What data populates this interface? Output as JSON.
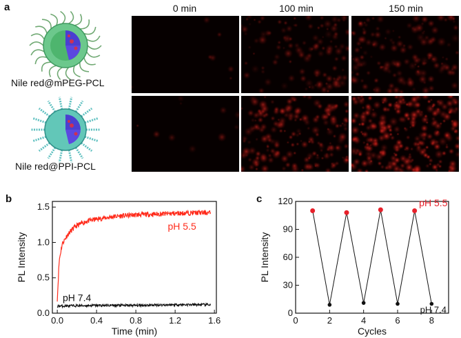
{
  "panel_a": {
    "label": "a",
    "columns": [
      "0 min",
      "100 min",
      "150 min"
    ],
    "rows": [
      {
        "label": "Nile red@mPEG-PCL",
        "intensity": [
          0.02,
          0.45,
          0.55
        ]
      },
      {
        "label": "Nile red@PPI-PCL",
        "intensity": [
          0.03,
          0.7,
          0.95
        ]
      }
    ],
    "colors": {
      "micelle_shell": "#58c080",
      "micelle_core": "#4b3fd0",
      "fluorescence": "#ff2a2a",
      "background": "#060000"
    }
  },
  "chart_data": [
    {
      "type": "line",
      "panel": "b",
      "xlabel": "Time (min)",
      "ylabel": "PL Intensity",
      "xlim": [
        -0.05,
        1.62
      ],
      "ylim": [
        0.0,
        1.58
      ],
      "xticks": [
        "0.0",
        "0.4",
        "0.8",
        "1.2",
        "1.6"
      ],
      "yticks": [
        "0.0",
        "0.5",
        "1.0",
        "1.5"
      ],
      "series": [
        {
          "name": "pH 5.5",
          "color": "#ff2a1a",
          "x": [
            0.0,
            0.02,
            0.05,
            0.1,
            0.15,
            0.2,
            0.3,
            0.4,
            0.6,
            0.8,
            1.0,
            1.2,
            1.4,
            1.56
          ],
          "y": [
            0.2,
            0.75,
            0.98,
            1.1,
            1.18,
            1.24,
            1.3,
            1.33,
            1.37,
            1.39,
            1.4,
            1.41,
            1.42,
            1.42
          ]
        },
        {
          "name": "pH 7.4",
          "color": "#111111",
          "x": [
            0.0,
            0.4,
            0.8,
            1.2,
            1.56
          ],
          "y": [
            0.1,
            0.11,
            0.11,
            0.12,
            0.12
          ]
        }
      ]
    },
    {
      "type": "line",
      "panel": "c",
      "xlabel": "Cycles",
      "ylabel": "PL Intensity",
      "xlim": [
        0,
        9
      ],
      "ylim": [
        0,
        120
      ],
      "xticks": [
        "0",
        "2",
        "4",
        "6",
        "8"
      ],
      "yticks": [
        "0",
        "30",
        "60",
        "90",
        "120"
      ],
      "x": [
        1,
        2,
        3,
        4,
        5,
        6,
        7,
        8
      ],
      "y": [
        110,
        9,
        108,
        11,
        111,
        10,
        110,
        10
      ],
      "annotations": [
        {
          "text": "pH 5.5",
          "color": "#e8202a"
        },
        {
          "text": "pH 7.4",
          "color": "#111111"
        }
      ]
    }
  ],
  "panel_b_label": "b",
  "panel_c_label": "c"
}
